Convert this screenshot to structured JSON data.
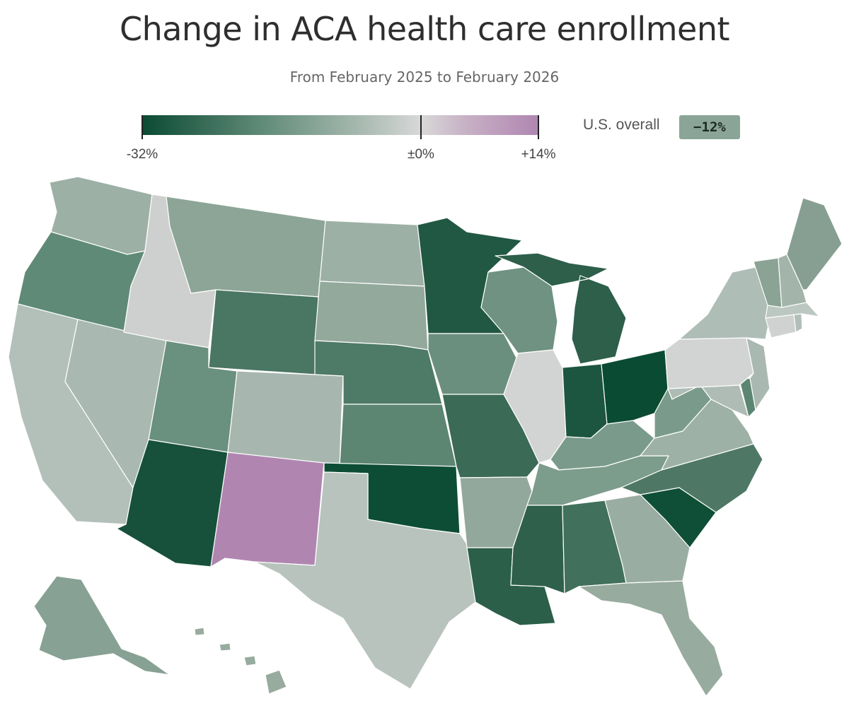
{
  "title": "Change in ACA health care enrollment",
  "subtitle": "From February 2025 to February 2026",
  "legend": {
    "min_label": "-32%",
    "mid_label": "±0%",
    "max_label": "+14%",
    "min_value": -32,
    "mid_value": 0,
    "max_value": 14,
    "color_min": "#0b4a33",
    "color_mid": "#d8d8d8",
    "color_max": "#b086b1"
  },
  "overall": {
    "label": "U.S. overall",
    "value": "−12%"
  },
  "states": {
    "WA": "#9cb0a6",
    "OR": "#5f8a78",
    "CA": "#b2c0b9",
    "NV": "#a9b9b1",
    "ID": "#cdd0ce",
    "MT": "#8ca596",
    "WY": "#4a7664",
    "UT": "#6a907f",
    "AZ": "#17513b",
    "CO": "#a7b7af",
    "NM": "#b086b1",
    "ND": "#9db0a6",
    "SD": "#93a99c",
    "NE": "#4e7a68",
    "KS": "#5c8572",
    "OK": "#0d4d36",
    "TX": "#b8c3bd",
    "MN": "#215843",
    "IA": "#6b8f7e",
    "MO": "#3b6a57",
    "AR": "#93a89d",
    "LA": "#2b5f4a",
    "WI": "#6f9282",
    "IL": "#d2d4d3",
    "MI": "#2d5f4b",
    "IN": "#1c5640",
    "OH": "#0a4b33",
    "KY": "#7a9b8b",
    "TN": "#7c9c8c",
    "MS": "#2f604b",
    "AL": "#41705c",
    "GA": "#9aada3",
    "FL": "#97ab9f",
    "SC": "#0f4f37",
    "NC": "#4e7865",
    "VA": "#9db1a6",
    "WV": "#7a9b8b",
    "MD": "#aebcb5",
    "DE": "#5d8672",
    "PA": "#d2d4d3",
    "NJ": "#a9b8b0",
    "NY": "#aebdb5",
    "CT": "#cfd2d0",
    "RI": "#b2bfb8",
    "MA": "#bcc7c1",
    "VT": "#8aa394",
    "NH": "#a3b5ab",
    "ME": "#879f92",
    "AK": "#87a194",
    "HI": "#97ab9f",
    "DC": "#aebcb5"
  }
}
